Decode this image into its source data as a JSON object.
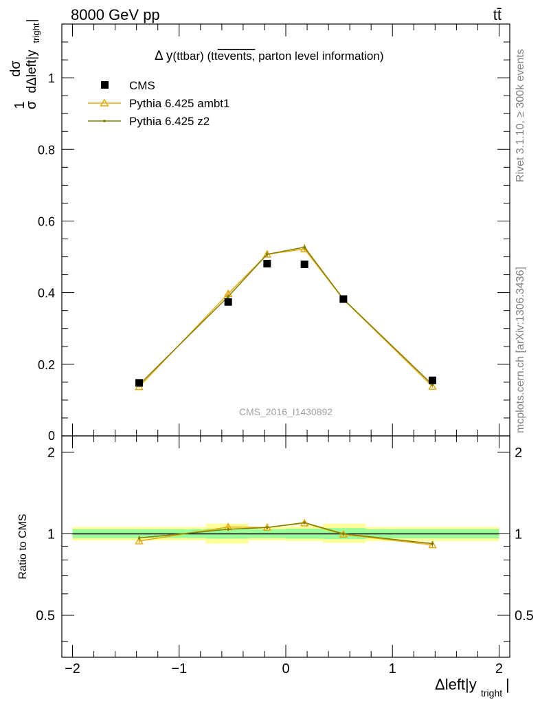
{
  "header": {
    "energy_label": "8000 GeV pp",
    "process_label": "tt̄"
  },
  "side_labels": {
    "rivet": "Rivet 3.1.10, ≥ 300k events",
    "source": "mcplots.cern.ch [arXiv:1306.3436]"
  },
  "chart_data": [
    {
      "type": "scatter",
      "title_parts": {
        "delta": "Δ y",
        "ttbar": "(ttbar) (tt",
        "events": "events,",
        "rest": " parton level information)"
      },
      "watermark": "CMS_2016_I1430892",
      "ylabel_parts": {
        "numerator_one": "1",
        "sigma": "σ",
        "numerator_d": "dσ",
        "denominator": "dΔleft|y",
        "sub": "tright",
        "close": "|"
      },
      "xlim": [
        -2.1,
        2.1
      ],
      "ylim": [
        0,
        1.15
      ],
      "yticks": [
        0.2,
        0.4,
        0.6,
        0.8,
        1
      ],
      "ytick_labels": [
        "0.2",
        "0.4",
        "0.6",
        "0.8",
        "1"
      ],
      "bottom_label": "0",
      "legend_position": "top-left",
      "series": [
        {
          "name": "CMS",
          "color": "#000000",
          "marker": "square",
          "x": [
            -1.375,
            -0.54,
            -0.175,
            0.175,
            0.54,
            1.375
          ],
          "y": [
            0.148,
            0.374,
            0.481,
            0.479,
            0.382,
            0.155
          ]
        },
        {
          "name": "Pythia 6.425 ambt1",
          "color": "#e8a80c",
          "marker": "triangle",
          "x": [
            -1.375,
            -0.54,
            -0.175,
            0.175,
            0.54,
            1.375
          ],
          "y": [
            0.137,
            0.397,
            0.507,
            0.522,
            0.381,
            0.138
          ],
          "err": [
            0.004,
            0.006,
            0.008,
            0.008,
            0.006,
            0.004
          ]
        },
        {
          "name": "Pythia 6.425 z2",
          "color": "#7f7f00",
          "marker": "dot",
          "x": [
            -1.375,
            -0.54,
            -0.175,
            0.175,
            0.54,
            1.375
          ],
          "y": [
            0.143,
            0.389,
            0.507,
            0.527,
            0.382,
            0.143
          ],
          "err": [
            0.004,
            0.006,
            0.008,
            0.008,
            0.006,
            0.004
          ]
        }
      ]
    },
    {
      "type": "scatter",
      "ylabel": "Ratio to CMS",
      "xlabel_parts": {
        "main": "Δleft|y",
        "sub": "tright",
        "close": "|"
      },
      "xlim": [
        -2.1,
        2.1
      ],
      "ylim": [
        0.35,
        2.3
      ],
      "xticks": [
        -2,
        -1,
        0,
        1,
        2
      ],
      "xtick_labels": [
        "−2",
        "−1",
        "0",
        "1",
        "2"
      ],
      "yticks": [
        0.5,
        1,
        2
      ],
      "ytick_labels": [
        "0.5",
        "1",
        "2"
      ],
      "bands": [
        {
          "x0": -2.0,
          "x1": -0.75,
          "y_outer": [
            0.945,
            1.06
          ],
          "y_inner": [
            0.965,
            1.04
          ]
        },
        {
          "x0": -0.75,
          "x1": -0.35,
          "y_outer": [
            0.92,
            1.09
          ],
          "y_inner": [
            0.96,
            1.045
          ]
        },
        {
          "x0": -0.35,
          "x1": 0.0,
          "y_outer": [
            0.945,
            1.06
          ],
          "y_inner": [
            0.965,
            1.04
          ]
        },
        {
          "x0": 0.0,
          "x1": 0.35,
          "y_outer": [
            0.94,
            1.065
          ],
          "y_inner": [
            0.96,
            1.045
          ]
        },
        {
          "x0": 0.35,
          "x1": 0.75,
          "y_outer": [
            0.925,
            1.09
          ],
          "y_inner": [
            0.955,
            1.05
          ]
        },
        {
          "x0": 0.75,
          "x1": 2.0,
          "y_outer": [
            0.94,
            1.06
          ],
          "y_inner": [
            0.963,
            1.04
          ]
        }
      ],
      "band_colors": {
        "outer": "#ffff99",
        "inner": "#99ff99"
      },
      "series": [
        {
          "name": "Pythia 6.425 ambt1",
          "color": "#e8a80c",
          "marker": "triangle",
          "x": [
            -1.375,
            -0.54,
            -0.175,
            0.175,
            0.54,
            1.375
          ],
          "y": [
            0.94,
            1.06,
            1.055,
            1.095,
            0.995,
            0.91
          ],
          "err": [
            0.02,
            0.015,
            0.015,
            0.015,
            0.015,
            0.02
          ]
        },
        {
          "name": "Pythia 6.425 z2",
          "color": "#7f7f00",
          "marker": "dot",
          "x": [
            -1.375,
            -0.54,
            -0.175,
            0.175,
            0.54,
            1.375
          ],
          "y": [
            0.965,
            1.04,
            1.055,
            1.1,
            1.0,
            0.92
          ],
          "err": [
            0.02,
            0.015,
            0.015,
            0.015,
            0.015,
            0.02
          ]
        }
      ]
    }
  ]
}
